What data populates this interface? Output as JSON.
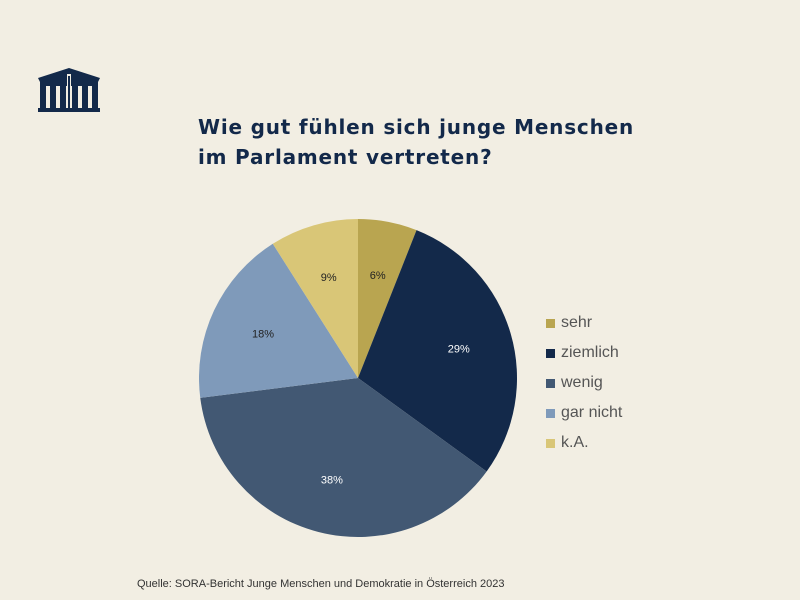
{
  "chart_data": {
    "type": "pie",
    "title": [
      "Wie gut fühlen sich junge Menschen",
      "im Parlament vertreten?"
    ],
    "categories": [
      "sehr",
      "ziemlich",
      "wenig",
      "gar nicht",
      "k.A."
    ],
    "values": [
      6,
      29,
      38,
      18,
      9
    ],
    "labels": [
      "6%",
      "29%",
      "38%",
      "18%",
      "9%"
    ],
    "colors": [
      "#b9a550",
      "#13294a",
      "#425873",
      "#7f9aba",
      "#d9c677"
    ],
    "legend": "right",
    "start": "top",
    "direction": "clockwise"
  },
  "source": "Quelle: SORA-Bericht Junge Menschen und Demokratie in Österreich 2023",
  "logo": {
    "icon": "parliament-building-icon",
    "color": "#13294a"
  }
}
